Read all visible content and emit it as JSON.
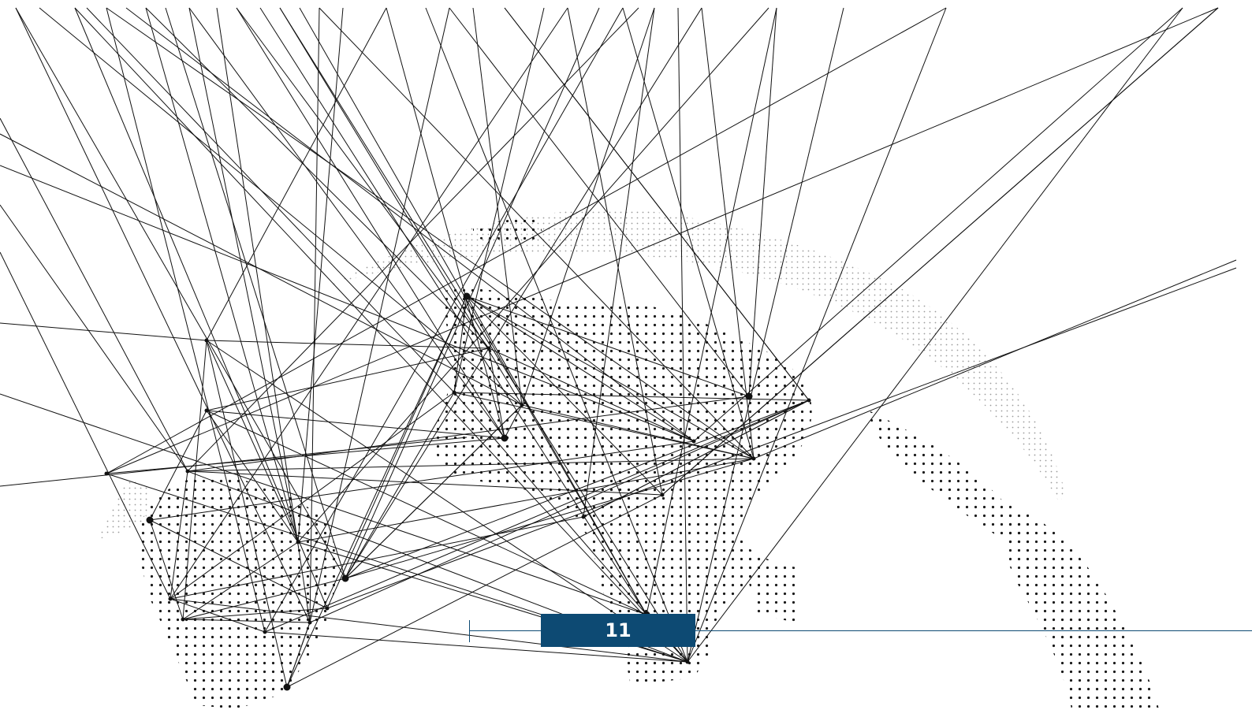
{
  "page": {
    "page_number": "11",
    "accent_color": "#0d4a73",
    "background_color": "#ffffff"
  },
  "artwork": {
    "description_icon": "dotted-globe-network-icon"
  }
}
